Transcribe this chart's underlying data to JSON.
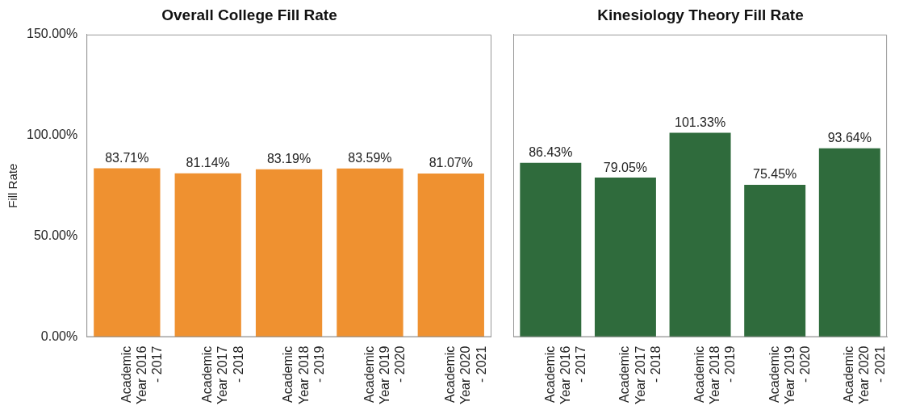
{
  "chart_data": [
    {
      "type": "bar",
      "title": "Overall College Fill Rate",
      "ylabel": "Fill Rate",
      "categories": [
        "Academic Year 2016 - 2017",
        "Academic Year 2017 - 2018",
        "Academic Year 2018 - 2019",
        "Academic Year 2019 - 2020",
        "Academic Year 2020 - 2021"
      ],
      "values": [
        83.71,
        81.14,
        83.19,
        83.59,
        81.07
      ],
      "value_labels": [
        "83.71%",
        "81.14%",
        "83.19%",
        "83.59%",
        "81.07%"
      ],
      "color": "#ef9130",
      "ylim": [
        0,
        150
      ],
      "yticks": [
        {
          "value": 0,
          "label": "0.00%"
        },
        {
          "value": 50,
          "label": "50.00%"
        },
        {
          "value": 100,
          "label": "100.00%"
        },
        {
          "value": 150,
          "label": "150.00%"
        }
      ]
    },
    {
      "type": "bar",
      "title": "Kinesiology Theory Fill Rate",
      "categories": [
        "Academic Year 2016 - 2017",
        "Academic Year 2017 - 2018",
        "Academic Year 2018 - 2019",
        "Academic Year 2019 - 2020",
        "Academic Year 2020 - 2021"
      ],
      "values": [
        86.43,
        79.05,
        101.33,
        75.45,
        93.64
      ],
      "value_labels": [
        "86.43%",
        "79.05%",
        "101.33%",
        "75.45%",
        "93.64%"
      ],
      "color": "#2f6b3c",
      "ylim": [
        0,
        150
      ],
      "tick_labels": "x"
    }
  ]
}
